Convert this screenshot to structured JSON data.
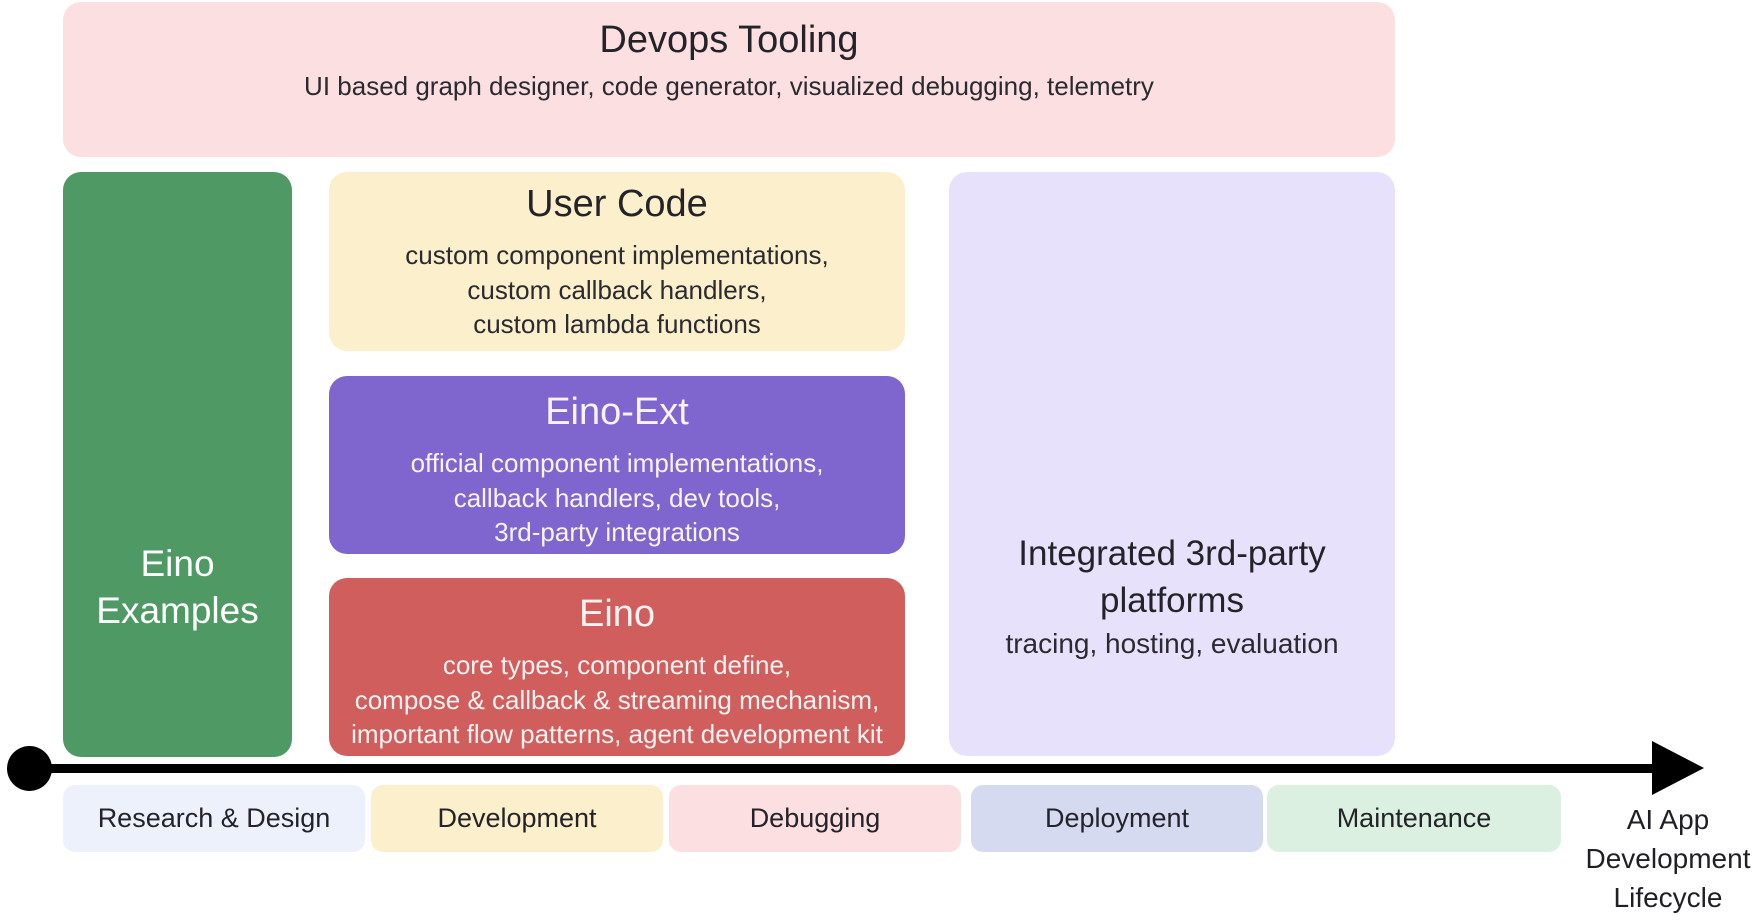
{
  "diagram": {
    "devops": {
      "title": "Devops Tooling",
      "subtitle": "UI based graph designer, code generator, visualized debugging, telemetry",
      "bg": "#fcdfe1"
    },
    "examples": {
      "line1": "Eino",
      "line2": "Examples",
      "bg": "#4f9964"
    },
    "stack": [
      {
        "title": "User Code",
        "lines": [
          "custom component implementations,",
          "custom callback handlers,",
          "custom lambda functions"
        ],
        "bg": "#fcefcb"
      },
      {
        "title": "Eino-Ext",
        "lines": [
          "official component implementations,",
          "callback handlers, dev tools,",
          "3rd-party integrations"
        ],
        "bg": "#7f66ce"
      },
      {
        "title": "Eino",
        "lines": [
          "core types, component define,",
          "compose & callback & streaming mechanism,",
          "important flow patterns, agent development kit"
        ],
        "bg": "#d05e5c"
      }
    ],
    "platforms": {
      "title_line1": "Integrated 3rd-party",
      "title_line2": "platforms",
      "subtitle": "tracing, hosting, evaluation",
      "bg": "#e8e1fb"
    },
    "timeline": {
      "arrow_color": "#000000",
      "stages": [
        {
          "label": "Research & Design",
          "bg": "#edf1fb"
        },
        {
          "label": "Development",
          "bg": "#fcefcb"
        },
        {
          "label": "Debugging",
          "bg": "#fcdfe1"
        },
        {
          "label": "Deployment",
          "bg": "#d5daf0"
        },
        {
          "label": "Maintenance",
          "bg": "#dcf0e2"
        }
      ],
      "caption_line1": "AI App",
      "caption_line2": "Development",
      "caption_line3": "Lifecycle"
    }
  }
}
